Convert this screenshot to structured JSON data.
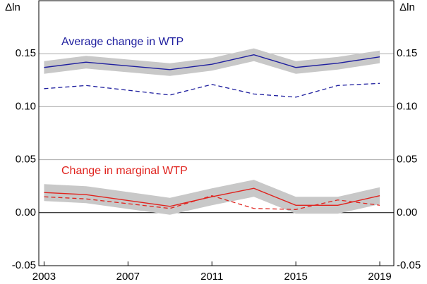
{
  "chart_data": {
    "type": "line",
    "y_label": "Δln",
    "x": [
      2003,
      2005,
      2009,
      2011,
      2013,
      2015,
      2017,
      2019
    ],
    "series": [
      {
        "name": "Average change in WTP",
        "color": "#1f1f9f",
        "values": [
          0.137,
          0.142,
          0.135,
          0.14,
          0.149,
          0.137,
          0.141,
          0.147
        ],
        "dashed_values": [
          0.117,
          0.12,
          0.111,
          0.121,
          0.112,
          0.109,
          0.12,
          0.122
        ],
        "lower": [
          0.131,
          0.136,
          0.129,
          0.134,
          0.143,
          0.131,
          0.135,
          0.141
        ],
        "upper": [
          0.143,
          0.148,
          0.141,
          0.146,
          0.155,
          0.143,
          0.147,
          0.153
        ]
      },
      {
        "name": "Change in marginal WTP",
        "color": "#e0231e",
        "values": [
          0.019,
          0.017,
          0.006,
          0.015,
          0.023,
          0.007,
          0.007,
          0.016
        ],
        "dashed_values": [
          0.015,
          0.013,
          0.004,
          0.016,
          0.004,
          0.003,
          0.012,
          0.007
        ],
        "lower": [
          0.011,
          0.009,
          -0.002,
          0.007,
          0.015,
          -0.001,
          -0.001,
          0.008
        ],
        "upper": [
          0.027,
          0.025,
          0.014,
          0.023,
          0.031,
          0.015,
          0.015,
          0.024
        ]
      }
    ],
    "band_color": "#c8c8c8",
    "xlim": [
      2002.75,
      2019.67
    ],
    "xticks": [
      2003,
      2007,
      2011,
      2015,
      2019
    ],
    "ylim": [
      -0.05,
      0.2
    ],
    "yticks": [
      {
        "value": -0.05,
        "label": "-0.05"
      },
      {
        "value": 0,
        "label": "0.00"
      },
      0.05,
      {
        "value": 0.1,
        "label": "0.10"
      },
      0.15
    ],
    "grid": true
  }
}
